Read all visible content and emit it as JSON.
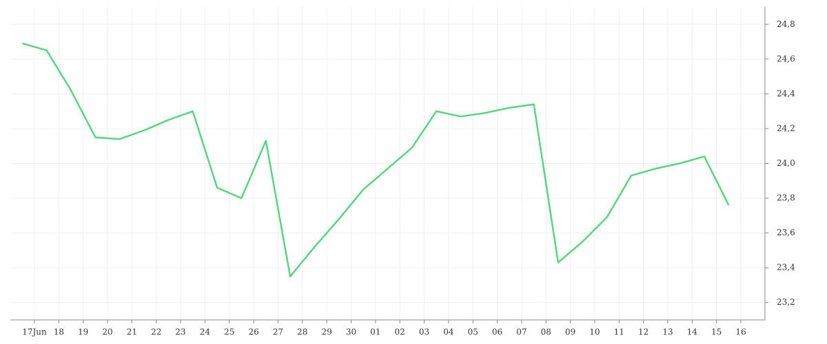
{
  "chart_data": {
    "type": "line",
    "categories": [
      "17Jun",
      "18",
      "19",
      "20",
      "21",
      "22",
      "23",
      "24",
      "25",
      "26",
      "27",
      "28",
      "29",
      "30",
      "01",
      "02",
      "03",
      "04",
      "05",
      "06",
      "07",
      "08",
      "09",
      "10",
      "11",
      "12",
      "13",
      "14",
      "15",
      "16"
    ],
    "values": [
      24.69,
      24.65,
      24.42,
      24.15,
      24.14,
      24.19,
      24.25,
      24.3,
      23.86,
      23.8,
      24.13,
      23.35,
      23.52,
      23.68,
      23.85,
      23.97,
      24.09,
      24.3,
      24.27,
      24.29,
      24.32,
      24.34,
      23.43,
      23.55,
      23.69,
      23.93,
      23.97,
      24.0,
      24.04,
      23.76
    ],
    "color": "#55d67f",
    "ylim": [
      23.1,
      24.9
    ],
    "yticks": [
      {
        "value": 23.2,
        "label": "23,2"
      },
      {
        "value": 23.4,
        "label": "23,4"
      },
      {
        "value": 23.6,
        "label": "23,6"
      },
      {
        "value": 23.8,
        "label": "23,8"
      },
      {
        "value": 24.0,
        "label": "24,0"
      },
      {
        "value": 24.2,
        "label": "24,2"
      },
      {
        "value": 24.4,
        "label": "24,4"
      },
      {
        "value": 24.6,
        "label": "24,6"
      },
      {
        "value": 24.8,
        "label": "24,8"
      }
    ],
    "grid": true
  }
}
